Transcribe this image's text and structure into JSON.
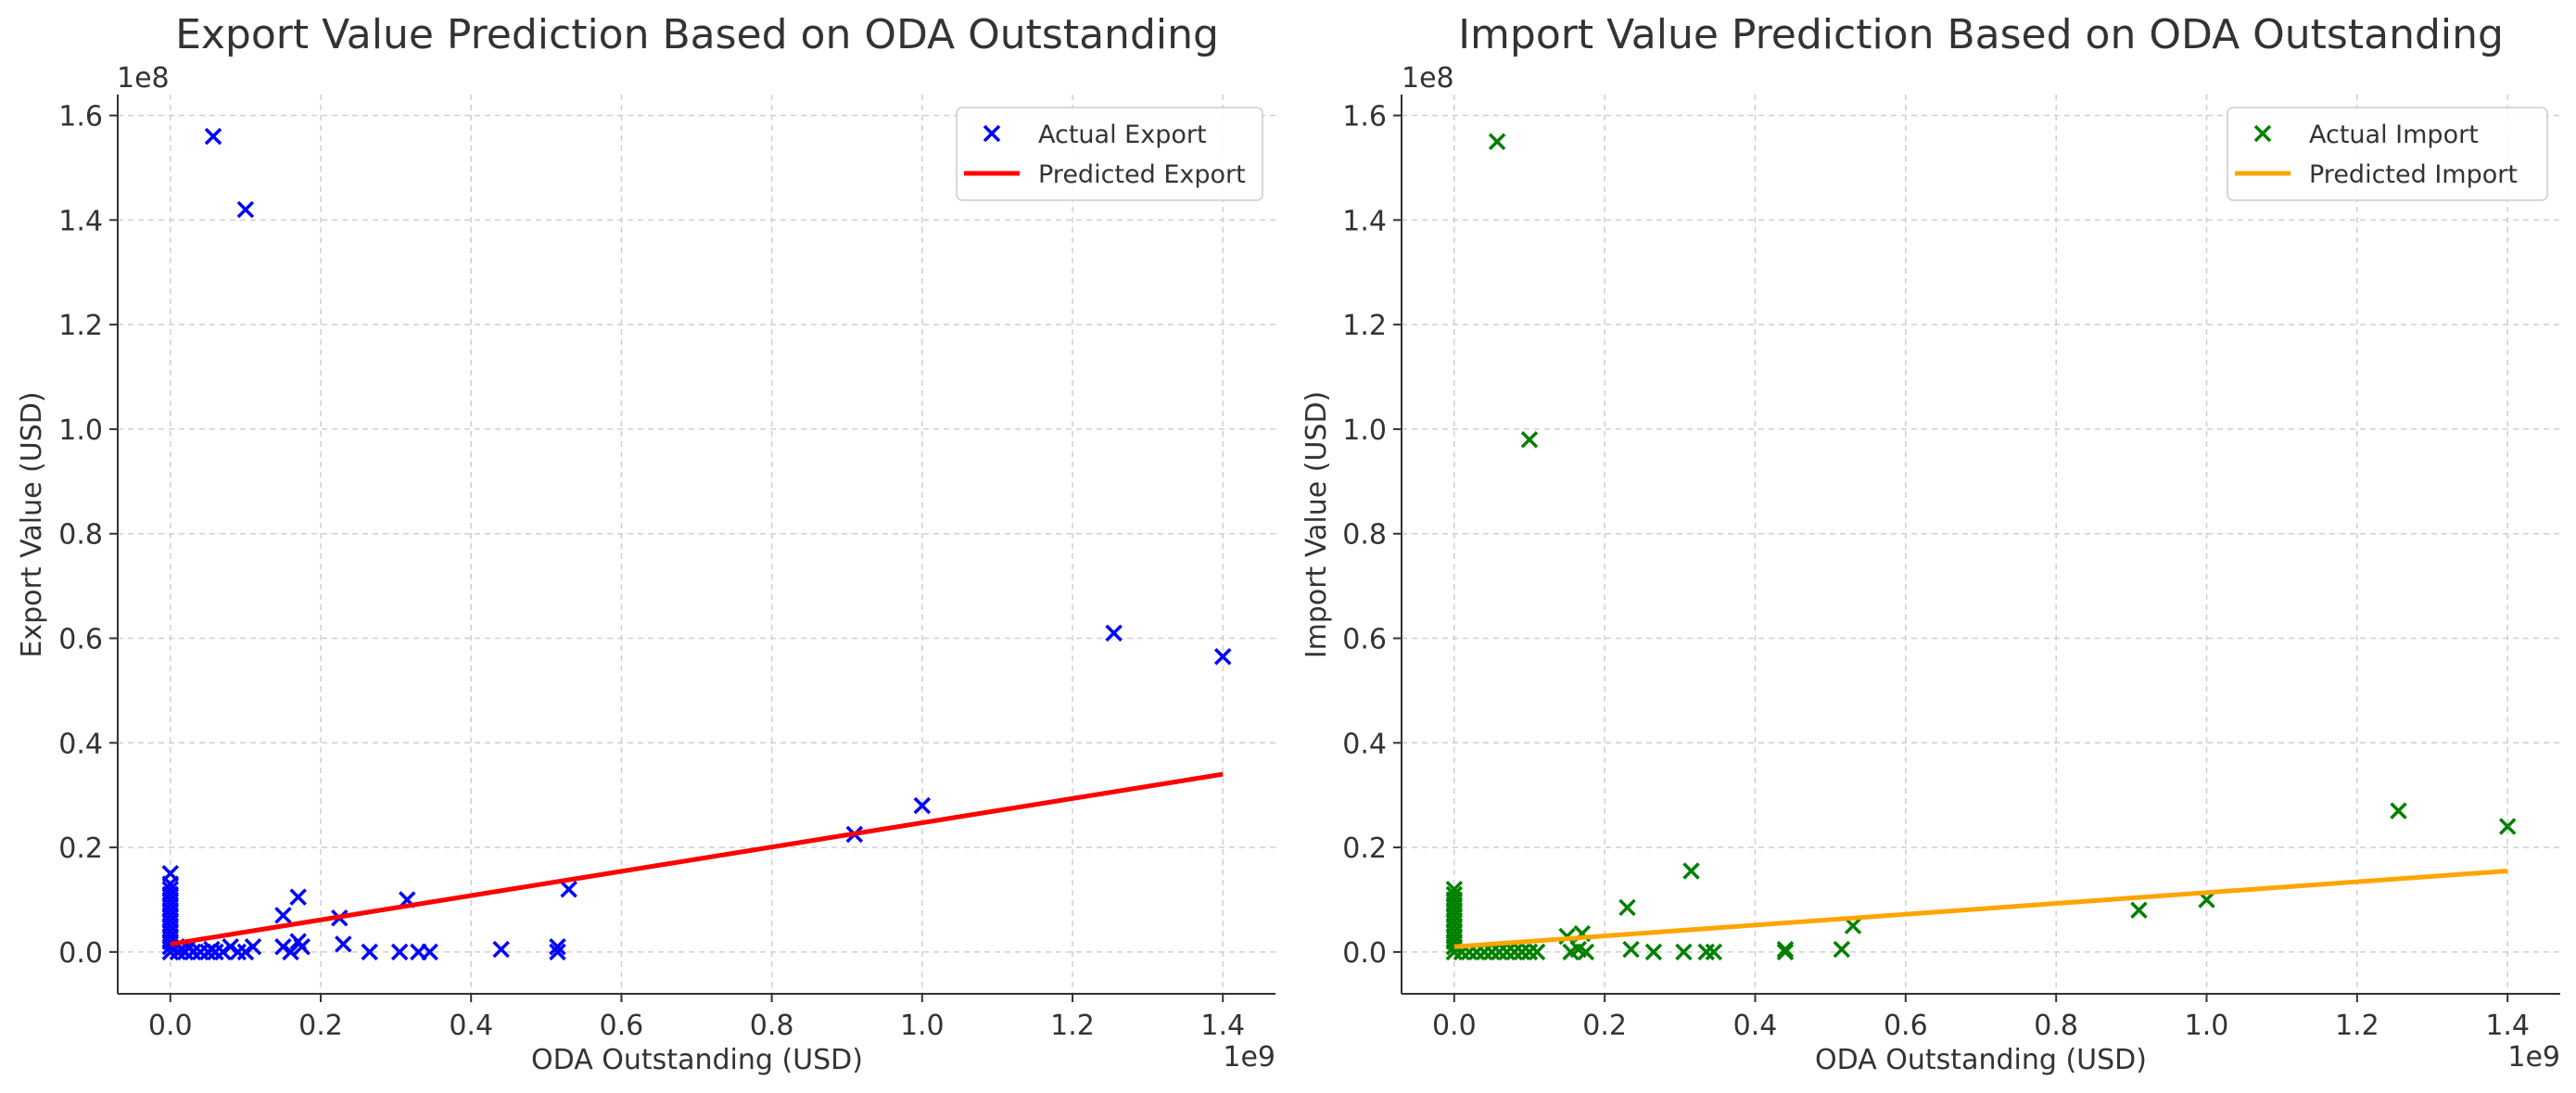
{
  "chart_data": [
    {
      "type": "scatter",
      "title": "Export Value Prediction Based on ODA Outstanding",
      "xlabel": "ODA Outstanding (USD)",
      "ylabel": "Export Value (USD)",
      "x_offset_label": "1e9",
      "y_offset_label": "1e8",
      "xlim": [
        -0.07,
        1.47
      ],
      "ylim": [
        -0.08,
        1.64
      ],
      "xticks": [
        0.0,
        0.2,
        0.4,
        0.6,
        0.8,
        1.0,
        1.2,
        1.4
      ],
      "xtick_labels": [
        "0.0",
        "0.2",
        "0.4",
        "0.6",
        "0.8",
        "1.0",
        "1.2",
        "1.4"
      ],
      "yticks": [
        0.0,
        0.2,
        0.4,
        0.6,
        0.8,
        1.0,
        1.2,
        1.4,
        1.6
      ],
      "ytick_labels": [
        "0.0",
        "0.2",
        "0.4",
        "0.6",
        "0.8",
        "1.0",
        "1.2",
        "1.4",
        "1.6"
      ],
      "grid": true,
      "legend_position": "top-right",
      "series": [
        {
          "name": "Actual Export",
          "kind": "scatter",
          "marker": "x",
          "color": "#0000ff",
          "points": [
            [
              0.0,
              0.15
            ],
            [
              0.0,
              0.13
            ],
            [
              0.0,
              0.12
            ],
            [
              0.0,
              0.11
            ],
            [
              0.0,
              0.1
            ],
            [
              0.0,
              0.09
            ],
            [
              0.0,
              0.08
            ],
            [
              0.0,
              0.07
            ],
            [
              0.0,
              0.06
            ],
            [
              0.0,
              0.05
            ],
            [
              0.0,
              0.04
            ],
            [
              0.0,
              0.03
            ],
            [
              0.0,
              0.02
            ],
            [
              0.0,
              0.01
            ],
            [
              0.0,
              0.0
            ],
            [
              0.01,
              0.0
            ],
            [
              0.015,
              0.005
            ],
            [
              0.02,
              0.0
            ],
            [
              0.025,
              0.01
            ],
            [
              0.03,
              0.0
            ],
            [
              0.04,
              0.0
            ],
            [
              0.05,
              0.0
            ],
            [
              0.055,
              0.005
            ],
            [
              0.06,
              0.0
            ],
            [
              0.07,
              0.0
            ],
            [
              0.08,
              0.01
            ],
            [
              0.09,
              0.0
            ],
            [
              0.1,
              0.0
            ],
            [
              0.11,
              0.01
            ],
            [
              0.057,
              1.56
            ],
            [
              0.1,
              1.42
            ],
            [
              0.15,
              0.07
            ],
            [
              0.15,
              0.01
            ],
            [
              0.16,
              0.0
            ],
            [
              0.17,
              0.02
            ],
            [
              0.17,
              0.105
            ],
            [
              0.175,
              0.01
            ],
            [
              0.225,
              0.065
            ],
            [
              0.23,
              0.015
            ],
            [
              0.265,
              0.0
            ],
            [
              0.305,
              0.0
            ],
            [
              0.315,
              0.1
            ],
            [
              0.33,
              0.0
            ],
            [
              0.345,
              0.0
            ],
            [
              0.44,
              0.005
            ],
            [
              0.515,
              0.01
            ],
            [
              0.515,
              0.0
            ],
            [
              0.53,
              0.12
            ],
            [
              0.91,
              0.225
            ],
            [
              1.0,
              0.28
            ],
            [
              1.255,
              0.61
            ],
            [
              1.4,
              0.565
            ]
          ]
        },
        {
          "name": "Predicted Export",
          "kind": "line",
          "color": "#ff0000",
          "points": [
            [
              0.0,
              0.015
            ],
            [
              1.4,
              0.34
            ]
          ]
        }
      ]
    },
    {
      "type": "scatter",
      "title": "Import Value Prediction Based on ODA Outstanding",
      "xlabel": "ODA Outstanding (USD)",
      "ylabel": "Import Value (USD)",
      "x_offset_label": "1e9",
      "y_offset_label": "1e8",
      "xlim": [
        -0.07,
        1.47
      ],
      "ylim": [
        -0.08,
        1.64
      ],
      "xticks": [
        0.0,
        0.2,
        0.4,
        0.6,
        0.8,
        1.0,
        1.2,
        1.4
      ],
      "xtick_labels": [
        "0.0",
        "0.2",
        "0.4",
        "0.6",
        "0.8",
        "1.0",
        "1.2",
        "1.4"
      ],
      "yticks": [
        0.0,
        0.2,
        0.4,
        0.6,
        0.8,
        1.0,
        1.2,
        1.4,
        1.6
      ],
      "ytick_labels": [
        "0.0",
        "0.2",
        "0.4",
        "0.6",
        "0.8",
        "1.0",
        "1.2",
        "1.4",
        "1.6"
      ],
      "grid": true,
      "legend_position": "top-right",
      "series": [
        {
          "name": "Actual Import",
          "kind": "scatter",
          "marker": "x",
          "color": "#008000",
          "points": [
            [
              0.0,
              0.12
            ],
            [
              0.0,
              0.11
            ],
            [
              0.0,
              0.1
            ],
            [
              0.0,
              0.09
            ],
            [
              0.0,
              0.08
            ],
            [
              0.0,
              0.07
            ],
            [
              0.0,
              0.06
            ],
            [
              0.0,
              0.05
            ],
            [
              0.0,
              0.04
            ],
            [
              0.0,
              0.03
            ],
            [
              0.0,
              0.02
            ],
            [
              0.0,
              0.01
            ],
            [
              0.0,
              0.0
            ],
            [
              0.01,
              0.0
            ],
            [
              0.02,
              0.0
            ],
            [
              0.03,
              0.0
            ],
            [
              0.04,
              0.0
            ],
            [
              0.05,
              0.0
            ],
            [
              0.06,
              0.0
            ],
            [
              0.07,
              0.0
            ],
            [
              0.08,
              0.0
            ],
            [
              0.09,
              0.0
            ],
            [
              0.1,
              0.0
            ],
            [
              0.11,
              0.0
            ],
            [
              0.057,
              1.55
            ],
            [
              0.1,
              0.98
            ],
            [
              0.15,
              0.03
            ],
            [
              0.155,
              0.0
            ],
            [
              0.165,
              0.005
            ],
            [
              0.17,
              0.035
            ],
            [
              0.175,
              0.0
            ],
            [
              0.23,
              0.085
            ],
            [
              0.235,
              0.005
            ],
            [
              0.265,
              0.0
            ],
            [
              0.305,
              0.0
            ],
            [
              0.315,
              0.155
            ],
            [
              0.335,
              0.0
            ],
            [
              0.345,
              0.0
            ],
            [
              0.44,
              0.005
            ],
            [
              0.44,
              0.0
            ],
            [
              0.515,
              0.005
            ],
            [
              0.53,
              0.05
            ],
            [
              0.91,
              0.08
            ],
            [
              1.0,
              0.1
            ],
            [
              1.255,
              0.27
            ],
            [
              1.4,
              0.24
            ]
          ]
        },
        {
          "name": "Predicted Import",
          "kind": "line",
          "color": "#ffa500",
          "points": [
            [
              0.0,
              0.01
            ],
            [
              1.4,
              0.155
            ]
          ]
        }
      ]
    }
  ]
}
